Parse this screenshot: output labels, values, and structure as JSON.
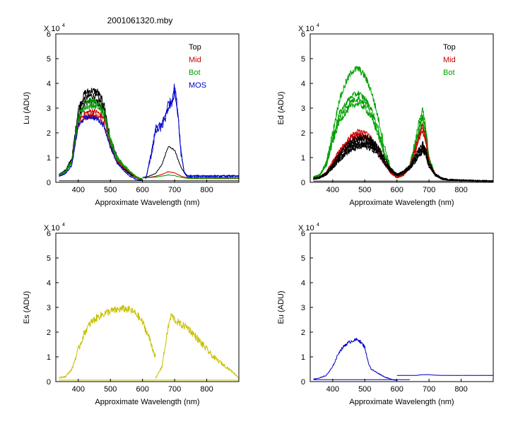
{
  "figure_title": "2001061320.mby",
  "chart_data": [
    {
      "type": "line",
      "ylabel": "Lu (ADU)",
      "xlabel": "Approximate Wavelength (nm)",
      "y_multiplier_label": "X 10",
      "y_multiplier_exponent": "4",
      "xlim": [
        330,
        900
      ],
      "ylim": [
        0,
        60000
      ],
      "xticks": [
        400,
        500,
        600,
        700,
        800
      ],
      "yticks": [
        0,
        10000,
        20000,
        30000,
        40000,
        50000,
        60000
      ],
      "ytick_labels": [
        "0",
        "1",
        "2",
        "3",
        "4",
        "5",
        "6"
      ],
      "grid": false,
      "legend_position": "top-right",
      "legend": [
        {
          "label": "Top",
          "color": "#000000"
        },
        {
          "label": "Mid",
          "color": "#cc0000"
        },
        {
          "label": "Bot",
          "color": "#00a000"
        },
        {
          "label": "MOS",
          "color": "#0000cc"
        }
      ],
      "series": [
        {
          "color": "#000000",
          "noise": 1500,
          "copies": 3,
          "x": [
            340,
            360,
            380,
            400,
            420,
            440,
            460,
            480,
            500,
            520,
            540,
            560,
            580,
            600
          ],
          "y": [
            3000,
            4500,
            9000,
            28000,
            34000,
            35000,
            34500,
            30000,
            16000,
            9500,
            6000,
            3500,
            2000,
            1000
          ]
        },
        {
          "color": "#cc0000",
          "noise": 1200,
          "copies": 2,
          "x": [
            340,
            360,
            380,
            400,
            420,
            440,
            460,
            480,
            500,
            520,
            540,
            560,
            580,
            600
          ],
          "y": [
            3000,
            4000,
            8000,
            24000,
            27000,
            28000,
            27500,
            25000,
            15000,
            9000,
            6500,
            4000,
            2000,
            1000
          ]
        },
        {
          "color": "#00a000",
          "noise": 1200,
          "copies": 2,
          "x": [
            340,
            360,
            380,
            400,
            420,
            440,
            460,
            480,
            500,
            520,
            540,
            560,
            580,
            600
          ],
          "y": [
            3000,
            4200,
            8500,
            26000,
            31000,
            32000,
            31500,
            28000,
            17000,
            10000,
            7000,
            4500,
            2200,
            1000
          ]
        },
        {
          "color": "#0000cc",
          "noise": 1000,
          "copies": 1,
          "x": [
            340,
            360,
            380,
            400,
            420,
            440,
            460,
            480,
            500,
            520,
            540,
            560,
            580,
            600
          ],
          "y": [
            2500,
            3500,
            7000,
            23000,
            26000,
            26500,
            25500,
            23000,
            14000,
            8000,
            5000,
            2500,
            1200,
            600
          ]
        },
        {
          "color": "#000000",
          "noise": 400,
          "copies": 1,
          "x": [
            600,
            620,
            640,
            660,
            680,
            700,
            720,
            740,
            760,
            800,
            850,
            900
          ],
          "y": [
            2000,
            2500,
            3500,
            7000,
            14500,
            13000,
            6000,
            2000,
            1800,
            1800,
            1800,
            1800
          ]
        },
        {
          "color": "#cc0000",
          "noise": 300,
          "copies": 1,
          "x": [
            600,
            620,
            640,
            660,
            680,
            700,
            720,
            740,
            760,
            800,
            850,
            900
          ],
          "y": [
            1800,
            2000,
            2400,
            3200,
            4300,
            3800,
            2500,
            1800,
            1700,
            1700,
            1700,
            1700
          ]
        },
        {
          "color": "#00a000",
          "noise": 300,
          "copies": 1,
          "x": [
            600,
            620,
            640,
            660,
            680,
            700,
            720,
            740,
            760,
            800,
            850,
            900
          ],
          "y": [
            1800,
            1900,
            2100,
            2500,
            3000,
            2700,
            2000,
            1600,
            1500,
            1500,
            1500,
            1500
          ]
        },
        {
          "color": "#0000cc",
          "noise": 1500,
          "copies": 2,
          "x": [
            610,
            620,
            630,
            640,
            650,
            660,
            670,
            680,
            690,
            700,
            710,
            720,
            730,
            740,
            760,
            800,
            850,
            900
          ],
          "y": [
            1500,
            7000,
            13000,
            21000,
            22000,
            23000,
            26000,
            31000,
            32000,
            38000,
            28000,
            12000,
            4000,
            2500,
            2500,
            2500,
            2500,
            2500
          ]
        },
        {
          "color": "#000000",
          "noise": 0,
          "copies": 1,
          "x": [
            340,
            900
          ],
          "y": [
            600,
            600
          ]
        }
      ]
    },
    {
      "type": "line",
      "ylabel": "Ed  (ADU)",
      "xlabel": "Approximate Wavelength (nm)",
      "y_multiplier_label": "X 10",
      "y_multiplier_exponent": "4",
      "xlim": [
        330,
        900
      ],
      "ylim": [
        0,
        60000
      ],
      "xticks": [
        400,
        500,
        600,
        700,
        800
      ],
      "yticks": [
        0,
        10000,
        20000,
        30000,
        40000,
        50000,
        60000
      ],
      "ytick_labels": [
        "0",
        "1",
        "2",
        "3",
        "4",
        "5",
        "6"
      ],
      "grid": false,
      "legend_position": "top-right",
      "legend": [
        {
          "label": "Top",
          "color": "#000000"
        },
        {
          "label": "Mid",
          "color": "#cc0000"
        },
        {
          "label": "Bot",
          "color": "#00a000"
        }
      ],
      "series": [
        {
          "color": "#00a000",
          "noise": 1500,
          "copies": 1,
          "x": [
            340,
            360,
            380,
            400,
            420,
            440,
            460,
            480,
            500,
            520,
            540,
            560,
            580,
            600,
            620,
            640,
            660,
            670,
            680,
            690,
            700,
            720,
            740,
            760
          ],
          "y": [
            2000,
            3000,
            8000,
            20000,
            33000,
            40000,
            45000,
            46000,
            43000,
            37000,
            27000,
            15000,
            6000,
            2000,
            3000,
            7000,
            18000,
            26000,
            29000,
            22000,
            10000,
            3000,
            1500,
            1000
          ]
        },
        {
          "color": "#00a000",
          "noise": 1200,
          "copies": 3,
          "x": [
            340,
            360,
            380,
            400,
            420,
            440,
            460,
            480,
            500,
            520,
            540,
            560,
            580,
            600,
            620,
            640,
            660,
            670,
            680,
            690,
            700,
            720,
            740,
            760
          ],
          "y": [
            2000,
            3000,
            7000,
            17000,
            26000,
            30000,
            33000,
            34000,
            32000,
            28000,
            21000,
            12000,
            5000,
            2000,
            3000,
            6500,
            16000,
            22000,
            25000,
            20000,
            9000,
            3000,
            1500,
            1000
          ]
        },
        {
          "color": "#cc0000",
          "noise": 1000,
          "copies": 3,
          "x": [
            340,
            360,
            380,
            400,
            420,
            440,
            460,
            480,
            500,
            520,
            540,
            560,
            580,
            600,
            620,
            640,
            660,
            670,
            680,
            690,
            700,
            720,
            740,
            760
          ],
          "y": [
            1500,
            2000,
            4000,
            8000,
            12000,
            15000,
            18000,
            19500,
            19000,
            17000,
            13000,
            8000,
            4000,
            2000,
            3000,
            6000,
            14000,
            19000,
            22000,
            17000,
            8000,
            3000,
            1500,
            1000
          ]
        },
        {
          "color": "#000000",
          "noise": 1200,
          "copies": 5,
          "x": [
            340,
            360,
            380,
            400,
            420,
            440,
            460,
            480,
            500,
            520,
            540,
            560,
            580,
            600,
            620,
            640,
            660,
            670,
            680,
            690,
            700,
            720,
            740,
            760,
            800,
            850,
            900
          ],
          "y": [
            1500,
            2000,
            3500,
            6500,
            10000,
            13000,
            15000,
            16000,
            16500,
            15500,
            13000,
            9000,
            5000,
            3000,
            4000,
            6000,
            10000,
            12000,
            14000,
            12000,
            7000,
            3000,
            1500,
            1000,
            800,
            600,
            500
          ]
        },
        {
          "color": "#000000",
          "noise": 0,
          "copies": 1,
          "x": [
            340,
            900
          ],
          "y": [
            500,
            500
          ]
        }
      ]
    },
    {
      "type": "line",
      "ylabel": "Es  (ADU)",
      "xlabel": "Approximate Wavelength (nm)",
      "y_multiplier_label": "X 10",
      "y_multiplier_exponent": "4",
      "xlim": [
        330,
        900
      ],
      "ylim": [
        0,
        60000
      ],
      "xticks": [
        400,
        500,
        600,
        700,
        800
      ],
      "yticks": [
        0,
        10000,
        20000,
        30000,
        40000,
        50000,
        60000
      ],
      "ytick_labels": [
        "0",
        "1",
        "2",
        "3",
        "4",
        "5",
        "6"
      ],
      "grid": false,
      "legend_position": "none",
      "legend": [],
      "series": [
        {
          "color": "#c8c000",
          "noise": 1500,
          "copies": 1,
          "x": [
            340,
            360,
            380,
            400,
            420,
            440,
            460,
            480,
            500,
            520,
            540,
            560,
            580,
            600,
            620,
            640
          ],
          "y": [
            1500,
            2000,
            5000,
            13000,
            20000,
            24000,
            26000,
            27500,
            28500,
            29000,
            29500,
            29000,
            27500,
            24000,
            18000,
            10000
          ]
        },
        {
          "color": "#c8c000",
          "noise": 1500,
          "copies": 1,
          "x": [
            640,
            660,
            680,
            690,
            700,
            720,
            740,
            760,
            780,
            800,
            820,
            840,
            860,
            880,
            900
          ],
          "y": [
            1000,
            6000,
            22000,
            27000,
            25000,
            23000,
            22000,
            19000,
            16000,
            13000,
            10000,
            8000,
            6000,
            4000,
            1500
          ]
        },
        {
          "color": "#c8c000",
          "noise": 0,
          "copies": 1,
          "x": [
            340,
            900
          ],
          "y": [
            600,
            600
          ]
        }
      ]
    },
    {
      "type": "line",
      "ylabel": "Eu  (ADU)",
      "xlabel": "Approximate Wavelength (nm)",
      "y_multiplier_label": "X 10",
      "y_multiplier_exponent": "4",
      "xlim": [
        330,
        900
      ],
      "ylim": [
        0,
        60000
      ],
      "xticks": [
        400,
        500,
        600,
        700,
        800
      ],
      "yticks": [
        0,
        10000,
        20000,
        30000,
        40000,
        50000,
        60000
      ],
      "ytick_labels": [
        "0",
        "1",
        "2",
        "3",
        "4",
        "5",
        "6"
      ],
      "grid": false,
      "legend_position": "none",
      "legend": [],
      "series": [
        {
          "color": "#0000cc",
          "noise": 700,
          "copies": 1,
          "x": [
            340,
            360,
            380,
            400,
            420,
            440,
            460,
            480,
            500,
            510,
            520,
            540,
            560,
            580,
            600
          ],
          "y": [
            1000,
            1500,
            2500,
            6000,
            12000,
            15000,
            16500,
            17000,
            14000,
            8000,
            5000,
            3500,
            2000,
            1000,
            500
          ]
        },
        {
          "color": "#0000cc",
          "noise": 200,
          "copies": 1,
          "x": [
            600,
            620,
            640,
            660,
            680,
            700,
            720,
            740,
            760,
            800,
            850,
            900
          ],
          "y": [
            2500,
            2500,
            2500,
            2500,
            2800,
            2800,
            2600,
            2500,
            2500,
            2500,
            2500,
            2500
          ]
        },
        {
          "color": "#0000cc",
          "noise": 0,
          "copies": 1,
          "x": [
            340,
            640
          ],
          "y": [
            800,
            800
          ]
        }
      ]
    }
  ]
}
